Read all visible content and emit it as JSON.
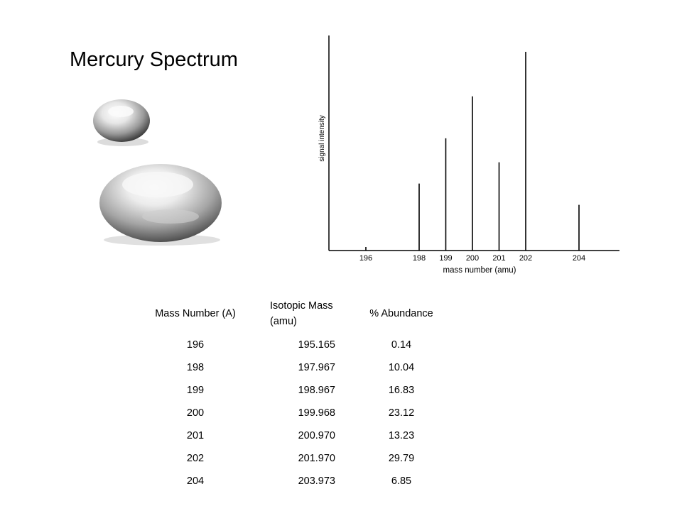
{
  "title": "Mercury Spectrum",
  "chart_data": {
    "type": "bar",
    "xlabel": "mass number (amu)",
    "ylabel": "signal intensity",
    "categories": [
      "196",
      "198",
      "199",
      "200",
      "201",
      "202",
      "204"
    ],
    "values": [
      0.14,
      10.04,
      16.83,
      23.12,
      13.23,
      29.79,
      6.85
    ],
    "grid": false
  },
  "table": {
    "headers": [
      "Mass Number (A)",
      "Isotopic Mass (amu)",
      "% Abundance"
    ],
    "rows": [
      [
        "196",
        "195.165",
        "0.14"
      ],
      [
        "198",
        "197.967",
        "10.04"
      ],
      [
        "199",
        "198.967",
        "16.83"
      ],
      [
        "200",
        "199.968",
        "23.12"
      ],
      [
        "201",
        "200.970",
        "13.23"
      ],
      [
        "202",
        "201.970",
        "29.79"
      ],
      [
        "204",
        "203.973",
        "6.85"
      ]
    ]
  },
  "image": {
    "subject": "mercury droplets"
  }
}
